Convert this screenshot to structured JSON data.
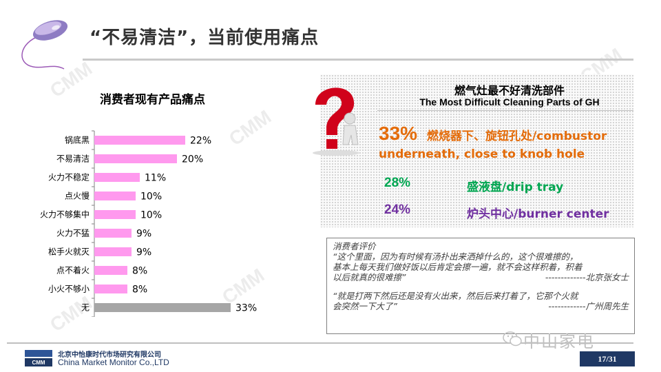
{
  "slide": {
    "title": "“不易清洁”，当前使用痛点",
    "watermark": "CMM"
  },
  "chart_data": {
    "type": "bar",
    "orientation": "horizontal",
    "title": "消费者现有产品痛点",
    "categories": [
      "锅底黑",
      "不易清洁",
      "火力不稳定",
      "点火慢",
      "火力不够集中",
      "火力不猛",
      "松手火就灭",
      "点不着火",
      "小火不够小",
      "无"
    ],
    "values": [
      22,
      20,
      11,
      10,
      10,
      9,
      9,
      8,
      8,
      33
    ],
    "value_labels": [
      "22%",
      "20%",
      "11%",
      "10%",
      "10%",
      "9%",
      "9%",
      "8%",
      "8%",
      "33%"
    ],
    "colors": {
      "default": "#ff99ee",
      "last": "#a6a6a6"
    },
    "xlim": [
      0,
      40
    ],
    "grid": false,
    "legend": "none"
  },
  "cleaning_parts": {
    "title_cn": "燃气灶最不好清洗部件",
    "title_en": "The Most Difficult Cleaning Parts of GH",
    "items": [
      {
        "pct": "33%",
        "text": "燃烧器下、旋钮孔处/combustor underneath, close to knob hole",
        "color": "#e46c0a"
      },
      {
        "pct": "28%",
        "text": "盛液盘/drip tray",
        "color": "#00a651"
      },
      {
        "pct": "24%",
        "text": "炉头中心/burner center",
        "color": "#7030a0"
      }
    ]
  },
  "quotes": {
    "label": "消费者评价",
    "q1": [
      "“这个里面，因为有时候有汤扑出来洒掉什么的，这个很难擦的，",
      "基本上每天我们做好饭以后肯定会擦一遍，就不会这样积着，积着",
      "以后就真的很难擦”"
    ],
    "q1_author": "-------------北京张女士",
    "q2": [
      "“就是打两下然后还是没有火出来，然后后来打着了，它那个火就",
      "会突然一下大了”"
    ],
    "q2_author": "------------广州周先生"
  },
  "footer": {
    "company_cn": "北京中怡康时代市场研究有限公司",
    "company_en": "China Market Monitor Co.,LTD",
    "logo_text": "CMM",
    "wechat_name": "中山家电",
    "page": "17/31"
  }
}
